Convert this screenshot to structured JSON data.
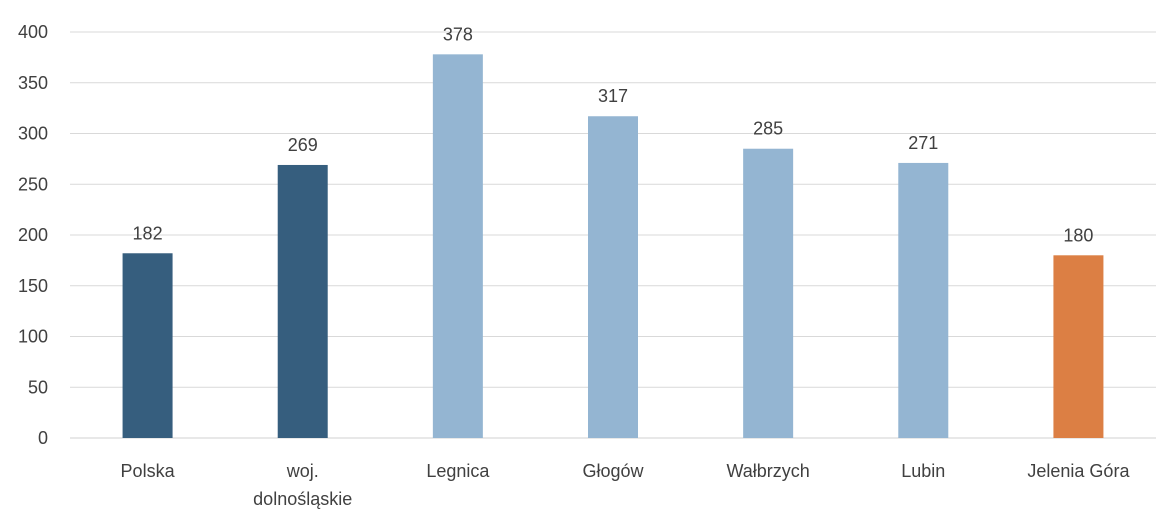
{
  "chart_data": {
    "type": "bar",
    "title": "",
    "xlabel": "",
    "ylabel": "",
    "ylim": [
      0,
      400
    ],
    "yticks": [
      0,
      50,
      100,
      150,
      200,
      250,
      300,
      350,
      400
    ],
    "grid": true,
    "legend": "none",
    "categories": [
      [
        "Polska"
      ],
      [
        "woj.",
        "dolnośląskie"
      ],
      [
        "Legnica"
      ],
      [
        "Głogów"
      ],
      [
        "Wałbrzych"
      ],
      [
        "Lubin"
      ],
      [
        "Jelenia Góra"
      ]
    ],
    "values": [
      182,
      269,
      378,
      317,
      285,
      271,
      180
    ],
    "bar_colors": [
      "#365e7e",
      "#365e7e",
      "#94b5d2",
      "#94b5d2",
      "#94b5d2",
      "#94b5d2",
      "#dc7f44"
    ]
  }
}
